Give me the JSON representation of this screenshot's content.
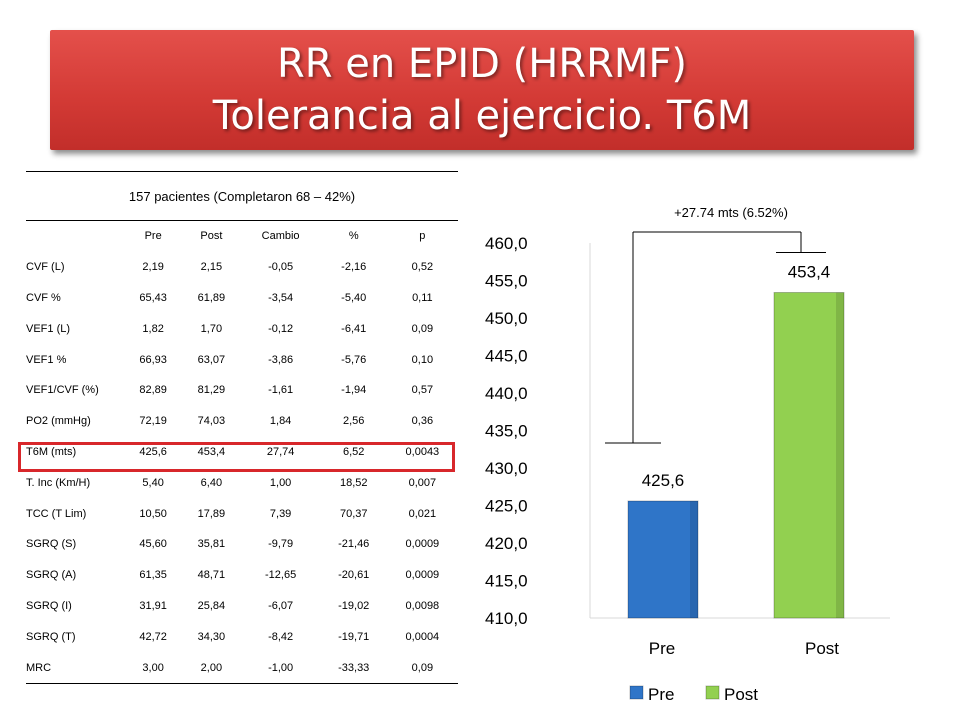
{
  "title": {
    "line1": "RR en EPID (HRRMF)",
    "line2": "Tolerancia al ejercicio. T6M"
  },
  "table": {
    "caption": "157 pacientes (Completaron 68 – 42%)",
    "headers": [
      "",
      "Pre",
      "Post",
      "Cambio",
      "%",
      "p"
    ],
    "rows": [
      [
        "CVF (L)",
        "2,19",
        "2,15",
        "-0,05",
        "-2,16",
        "0,52"
      ],
      [
        "CVF %",
        "65,43",
        "61,89",
        "-3,54",
        "-5,40",
        "0,11"
      ],
      [
        "VEF1 (L)",
        "1,82",
        "1,70",
        "-0,12",
        "-6,41",
        "0,09"
      ],
      [
        "VEF1 %",
        "66,93",
        "63,07",
        "-3,86",
        "-5,76",
        "0,10"
      ],
      [
        "VEF1/CVF (%)",
        "82,89",
        "81,29",
        "-1,61",
        "-1,94",
        "0,57"
      ],
      [
        "PO2 (mmHg)",
        "72,19",
        "74,03",
        "1,84",
        "2,56",
        "0,36"
      ],
      [
        "T6M (mts)",
        "425,6",
        "453,4",
        "27,74",
        "6,52",
        "0,0043"
      ],
      [
        "T. Inc (Km/H)",
        "5,40",
        "6,40",
        "1,00",
        "18,52",
        "0,007"
      ],
      [
        "TCC (T Lim)",
        "10,50",
        "17,89",
        "7,39",
        "70,37",
        "0,021"
      ],
      [
        "SGRQ (S)",
        "45,60",
        "35,81",
        "-9,79",
        "-21,46",
        "0,0009"
      ],
      [
        "SGRQ (A)",
        "61,35",
        "48,71",
        "-12,65",
        "-20,61",
        "0,0009"
      ],
      [
        "SGRQ (I)",
        "31,91",
        "25,84",
        "-6,07",
        "-19,02",
        "0,0098"
      ],
      [
        "SGRQ (T)",
        "42,72",
        "34,30",
        "-8,42",
        "-19,71",
        "0,0004"
      ],
      [
        "MRC",
        "3,00",
        "2,00",
        "-1,00",
        "-33,33",
        "0,09"
      ]
    ],
    "highlight_row": 6,
    "highlight_color": "#d8272b"
  },
  "chart_data": {
    "type": "bar",
    "categories": [
      "Pre",
      "Post"
    ],
    "values": [
      425.6,
      453.4
    ],
    "value_labels": [
      "425,6",
      "453,4"
    ],
    "colors": [
      "#2f75c8",
      "#92d050"
    ],
    "ylim": [
      410,
      460
    ],
    "yticks": [
      "460,0",
      "455,0",
      "450,0",
      "445,0",
      "440,0",
      "435,0",
      "430,0",
      "425,0",
      "420,0",
      "415,0",
      "410,0"
    ],
    "annotation": "+27.74 mts (6.52%)",
    "legend": [
      "Pre",
      "Post"
    ],
    "legend_position": "bottom",
    "grid": false
  }
}
